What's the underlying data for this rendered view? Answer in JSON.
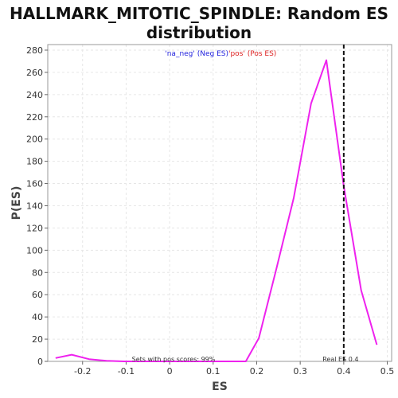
{
  "chart_data": {
    "type": "line",
    "title_line1": "HALLMARK_MITOTIC_SPINDLE: Random ES",
    "title_line2": "distribution",
    "xlabel": "ES",
    "ylabel": "P(ES)",
    "xlim": [
      -0.28,
      0.51
    ],
    "ylim": [
      0,
      285
    ],
    "xticks": [
      -0.2,
      -0.1,
      0.0,
      0.1,
      0.2,
      0.3,
      0.4,
      0.5
    ],
    "xtick_labels": [
      "-0.2",
      "-0.1",
      "0",
      "0.1",
      "0.2",
      "0.3",
      "0.4",
      "0.5"
    ],
    "yticks": [
      0,
      20,
      40,
      60,
      80,
      100,
      120,
      140,
      160,
      180,
      200,
      220,
      240,
      260,
      280
    ],
    "ytick_labels": [
      "0",
      "20",
      "40",
      "60",
      "80",
      "100",
      "120",
      "140",
      "160",
      "180",
      "200",
      "220",
      "240",
      "260",
      "280"
    ],
    "grid": true,
    "series": [
      {
        "color": "#ee22ee",
        "x": [
          -0.262,
          -0.225,
          -0.185,
          -0.145,
          -0.105,
          -0.065,
          -0.025,
          0.015,
          0.055,
          0.095,
          0.135,
          0.175,
          0.205,
          0.245,
          0.285,
          0.325,
          0.36,
          0.4,
          0.44,
          0.476
        ],
        "y": [
          3,
          6,
          2,
          0.5,
          0,
          0,
          0,
          0,
          0,
          0,
          0,
          0,
          21,
          83,
          147,
          232,
          271,
          158,
          64,
          15
        ]
      }
    ],
    "real_es": {
      "x": 0.4,
      "color": "#111111",
      "label": "Real ES 0.4"
    },
    "annotation": "Sets with pos scores: 99%",
    "legend": {
      "position": "top-center",
      "neg_label": "'na_neg' (Neg ES)",
      "neg_color": "#2222dd",
      "pos_label": "'pos' (Pos ES)",
      "pos_color": "#dd2222"
    }
  }
}
